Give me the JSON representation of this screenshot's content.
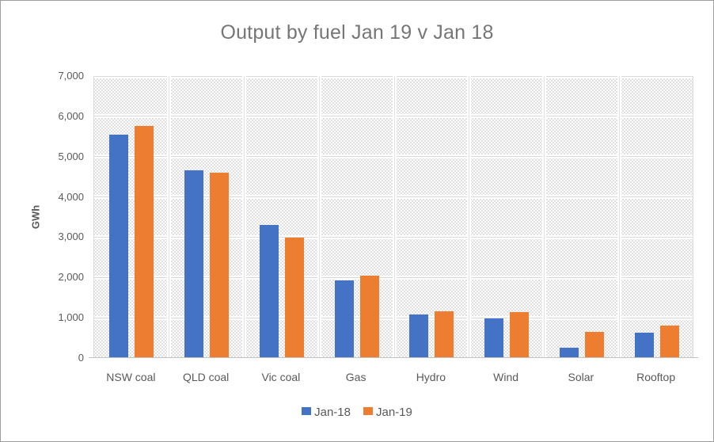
{
  "chart_data": {
    "type": "bar",
    "title": "Output by fuel Jan 19 v Jan 18",
    "ylabel": "GWh",
    "xlabel": "",
    "categories": [
      "NSW coal",
      "QLD coal",
      "Vic coal",
      "Gas",
      "Hydro",
      "Wind",
      "Solar",
      "Rooftop"
    ],
    "series": [
      {
        "name": "Jan-18",
        "color": "#4472C4",
        "values": [
          5550,
          4660,
          3300,
          1930,
          1080,
          980,
          260,
          620
        ]
      },
      {
        "name": "Jan-19",
        "color": "#ED7D31",
        "values": [
          5760,
          4600,
          2990,
          2040,
          1160,
          1150,
          650,
          800
        ]
      }
    ],
    "ylim": [
      0,
      7000
    ],
    "ytick_step": 1000,
    "ytick_labels": [
      "0",
      "1,000",
      "2,000",
      "3,000",
      "4,000",
      "5,000",
      "6,000",
      "7,000"
    ],
    "grid": "horizontal-and-vertical-separators",
    "legend_position": "bottom",
    "plot_background": "light-gray dotted pattern fill"
  },
  "legend": {
    "items": [
      {
        "label": "Jan-18",
        "color": "#4472C4"
      },
      {
        "label": "Jan-19",
        "color": "#ED7D31"
      }
    ]
  }
}
